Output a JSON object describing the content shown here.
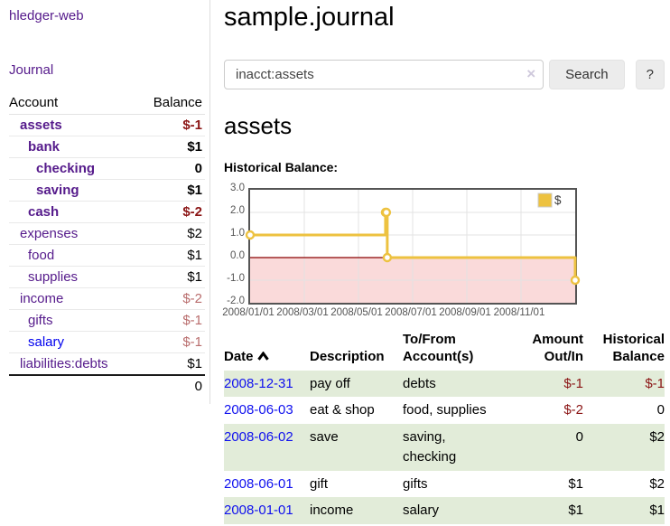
{
  "app": {
    "brand": "hledger-web",
    "nav_journal": "Journal"
  },
  "colors": {
    "link_purple": "#551a8b",
    "link_blue": "#0000ee",
    "negative_strong": "#8b1515",
    "negative_muted": "#b96d6d",
    "stripe_green": "#e2ecd9",
    "chart_gold": "#edc240",
    "chart_border": "#545454",
    "negative_region": "#fadada",
    "zero_line": "#8b0000"
  },
  "sidebar": {
    "header": {
      "account": "Account",
      "balance": "Balance"
    },
    "accounts": [
      {
        "name": "assets",
        "balance": "$-1",
        "indent": 1,
        "bold": true,
        "balance_style": "neg-strong",
        "link": "purple"
      },
      {
        "name": "bank",
        "balance": "$1",
        "indent": 2,
        "bold": true,
        "balance_style": "pos",
        "link": "purple"
      },
      {
        "name": "checking",
        "balance": "0",
        "indent": 3,
        "bold": true,
        "balance_style": "pos",
        "link": "purple"
      },
      {
        "name": "saving",
        "balance": "$1",
        "indent": 3,
        "bold": true,
        "balance_style": "pos",
        "link": "purple"
      },
      {
        "name": "cash",
        "balance": "$-2",
        "indent": 2,
        "bold": true,
        "balance_style": "neg-strong",
        "link": "purple"
      },
      {
        "name": "expenses",
        "balance": "$2",
        "indent": 1,
        "bold": false,
        "balance_style": "pos",
        "link": "purple"
      },
      {
        "name": "food",
        "balance": "$1",
        "indent": 2,
        "bold": false,
        "balance_style": "pos",
        "link": "purple"
      },
      {
        "name": "supplies",
        "balance": "$1",
        "indent": 2,
        "bold": false,
        "balance_style": "pos",
        "link": "purple"
      },
      {
        "name": "income",
        "balance": "$-2",
        "indent": 1,
        "bold": false,
        "balance_style": "neg-muted",
        "link": "purple"
      },
      {
        "name": "gifts",
        "balance": "$-1",
        "indent": 2,
        "bold": false,
        "balance_style": "neg-muted",
        "link": "purple"
      },
      {
        "name": "salary",
        "balance": "$-1",
        "indent": 2,
        "bold": false,
        "balance_style": "neg-muted",
        "link": "blue"
      },
      {
        "name": "liabilities:debts",
        "balance": "$1",
        "indent": 1,
        "bold": false,
        "balance_style": "pos",
        "link": "purple"
      }
    ],
    "total": "0"
  },
  "main": {
    "title": "sample.journal",
    "search": {
      "value": "inacct:assets",
      "clear_icon": "×",
      "button": "Search",
      "help_button": "?"
    },
    "account_heading": "assets",
    "chart_label": "Historical Balance:"
  },
  "chart_data": {
    "type": "line",
    "step": true,
    "title": "Historical Balance:",
    "series": [
      {
        "name": "$",
        "color": "#edc240",
        "points": [
          [
            "2008-01-01",
            1
          ],
          [
            "2008-06-01",
            2
          ],
          [
            "2008-06-02",
            2
          ],
          [
            "2008-06-03",
            0
          ],
          [
            "2008-12-31",
            -1
          ]
        ]
      }
    ],
    "xrange": [
      "2008-01-01",
      "2008-12-31"
    ],
    "ylim": [
      -2.0,
      3.0
    ],
    "yticks": [
      "3.0",
      "2.0",
      "1.0",
      "0.0",
      "-1.0",
      "-2.0"
    ],
    "xticks": [
      "2008/01/01",
      "2008/03/01",
      "2008/05/01",
      "2008/07/01",
      "2008/09/01",
      "2008/11/01"
    ],
    "grid": true,
    "legend_position": "top-right",
    "negative_region": true
  },
  "register": {
    "columns": [
      "Date",
      "Description",
      "To/From Account(s)",
      "Amount Out/In",
      "Historical Balance"
    ],
    "rows": [
      {
        "date": "2008-12-31",
        "description": "pay off",
        "accounts": "debts",
        "amount": "$-1",
        "balance": "$-1",
        "amount_negative": true,
        "balance_negative": true
      },
      {
        "date": "2008-06-03",
        "description": "eat & shop",
        "accounts": "food, supplies",
        "amount": "$-2",
        "balance": "0",
        "amount_negative": true,
        "balance_negative": false
      },
      {
        "date": "2008-06-02",
        "description": "save",
        "accounts": "saving, checking",
        "amount": "0",
        "balance": "$2",
        "amount_negative": false,
        "balance_negative": false
      },
      {
        "date": "2008-06-01",
        "description": "gift",
        "accounts": "gifts",
        "amount": "$1",
        "balance": "$2",
        "amount_negative": false,
        "balance_negative": false
      },
      {
        "date": "2008-01-01",
        "description": "income",
        "accounts": "salary",
        "amount": "$1",
        "balance": "$1",
        "amount_negative": false,
        "balance_negative": false
      }
    ]
  }
}
